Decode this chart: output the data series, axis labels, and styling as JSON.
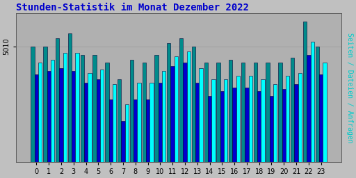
{
  "title": "Stunden-Statistik im Monat Dezember 2022",
  "ylabel": "Seiten / Dateien / Anfragen",
  "xlabel_ticks": [
    0,
    1,
    2,
    3,
    4,
    5,
    6,
    7,
    8,
    9,
    10,
    11,
    12,
    13,
    14,
    15,
    16,
    17,
    18,
    19,
    20,
    21,
    22,
    23
  ],
  "ytick_label": "5010",
  "background_color": "#c0c0c0",
  "plot_bg_color": "#b0b0b0",
  "title_color": "#0000cc",
  "ylabel_color": "#00cccc",
  "bar_colors": [
    "#008b8b",
    "#0000cd",
    "#00ffff"
  ],
  "bar_edgecolor": "#000033",
  "teal_bars": [
    5010,
    5010,
    5015,
    5018,
    5005,
    5005,
    5000,
    4990,
    5002,
    5000,
    5005,
    5012,
    5015,
    5010,
    5000,
    5000,
    5002,
    5000,
    5000,
    5000,
    5000,
    5003,
    5025,
    5010
  ],
  "blue_bars": [
    4993,
    4995,
    4997,
    4995,
    4988,
    4990,
    4978,
    4965,
    4978,
    4978,
    4988,
    4998,
    5000,
    4988,
    4980,
    4983,
    4985,
    4985,
    4983,
    4980,
    4984,
    4987,
    5005,
    4993
  ],
  "cyan_bars": [
    5000,
    5002,
    5006,
    5006,
    4994,
    4996,
    4987,
    4975,
    4988,
    4988,
    4995,
    5004,
    5007,
    4997,
    4990,
    4990,
    4992,
    4992,
    4990,
    4987,
    4992,
    4994,
    5013,
    5000
  ],
  "ylim_min": 4940,
  "ylim_max": 5030,
  "bar_bottom": 4940,
  "figsize": [
    5.12,
    2.56
  ],
  "dpi": 100,
  "title_fontsize": 10,
  "ytick_fontsize": 7,
  "xtick_fontsize": 7,
  "ylabel_fontsize": 7
}
